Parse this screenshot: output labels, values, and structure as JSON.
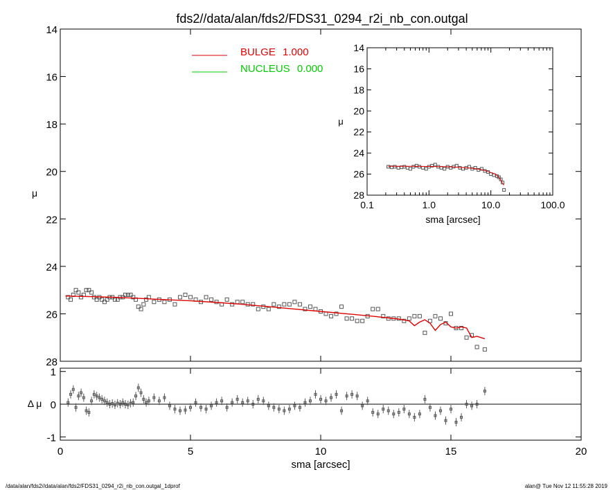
{
  "title": "fds2//data/alan/fds2/FDS31_0294_r2i_nb_con.outgal",
  "footer_left": "/data/alan/fds2//data/alan/fds2/FDS31_0294_r2i_nb_con.outgal_1dprof",
  "footer_right": "alan@  Tue Nov 12 11:55:28 2019",
  "colors": {
    "bulge": "#e00000",
    "nucleus": "#00cc00",
    "data": "#555555"
  },
  "chart_data": [
    {
      "id": "main-profile",
      "type": "scatter",
      "xlabel": "",
      "ylabel": "μ",
      "xlim": [
        0,
        20
      ],
      "ylim": [
        28,
        14
      ],
      "y_inverted": true,
      "xticks": [
        0,
        5,
        10,
        15,
        20
      ],
      "yticks": [
        14,
        16,
        18,
        20,
        22,
        24,
        26,
        28
      ],
      "ytick_labels": [
        "14",
        "16",
        "18",
        "20",
        "22",
        "24",
        "26",
        "28"
      ],
      "legend": [
        {
          "label": "BULGE",
          "value": "1.000",
          "color": "#e00000"
        },
        {
          "label": "NUCLEUS",
          "value": "0.000",
          "color": "#00cc00"
        }
      ],
      "legend_position": "top-center",
      "observed": {
        "x": [
          0.3,
          0.4,
          0.5,
          0.6,
          0.7,
          0.8,
          0.9,
          1.0,
          1.1,
          1.2,
          1.3,
          1.4,
          1.5,
          1.6,
          1.7,
          1.8,
          1.9,
          2.0,
          2.1,
          2.2,
          2.3,
          2.4,
          2.5,
          2.6,
          2.7,
          2.8,
          2.9,
          3.0,
          3.1,
          3.2,
          3.3,
          3.4,
          3.6,
          3.8,
          4.0,
          4.2,
          4.4,
          4.6,
          4.8,
          5.0,
          5.2,
          5.4,
          5.6,
          5.8,
          6.0,
          6.2,
          6.4,
          6.6,
          6.8,
          7.0,
          7.2,
          7.4,
          7.6,
          7.8,
          8.0,
          8.2,
          8.4,
          8.6,
          8.8,
          9.0,
          9.2,
          9.4,
          9.6,
          9.8,
          10.0,
          10.2,
          10.4,
          10.6,
          10.8,
          11.0,
          11.2,
          11.4,
          11.6,
          11.8,
          12.0,
          12.2,
          12.4,
          12.6,
          12.8,
          13.0,
          13.2,
          13.4,
          13.6,
          13.8,
          14.0,
          14.2,
          14.4,
          14.6,
          14.8,
          15.0,
          15.2,
          15.4,
          15.6,
          15.8,
          16.0,
          16.3
        ],
        "y": [
          25.3,
          25.4,
          25.2,
          25.0,
          25.1,
          25.3,
          25.2,
          25.0,
          25.0,
          25.1,
          25.3,
          25.4,
          25.3,
          25.4,
          25.5,
          25.4,
          25.3,
          25.3,
          25.4,
          25.4,
          25.3,
          25.3,
          25.2,
          25.2,
          25.2,
          25.3,
          25.4,
          25.7,
          25.8,
          25.6,
          25.4,
          25.3,
          25.5,
          25.4,
          25.5,
          25.4,
          25.6,
          25.3,
          25.2,
          25.3,
          25.4,
          25.5,
          25.3,
          25.4,
          25.5,
          25.6,
          25.4,
          25.6,
          25.5,
          25.5,
          25.6,
          25.6,
          25.8,
          25.7,
          25.8,
          25.6,
          25.7,
          25.6,
          25.6,
          25.5,
          25.6,
          25.8,
          25.7,
          25.8,
          25.9,
          26.0,
          26.1,
          26.0,
          25.7,
          26.2,
          26.2,
          26.3,
          26.3,
          26.1,
          25.8,
          25.8,
          26.1,
          26.2,
          26.2,
          26.2,
          26.3,
          26.2,
          26.1,
          26.1,
          26.8,
          26.3,
          26.1,
          26.2,
          26.4,
          26.0,
          26.6,
          26.6,
          27.0,
          26.9,
          27.4,
          27.5
        ]
      },
      "model_bulge": {
        "x": [
          0.2,
          1.0,
          2.0,
          3.0,
          4.0,
          5.0,
          6.0,
          7.0,
          8.0,
          9.0,
          10.0,
          11.0,
          12.0,
          13.0,
          13.4,
          13.6,
          13.8,
          14.0,
          14.2,
          14.4,
          14.6,
          14.8,
          15.0,
          15.2,
          15.4,
          15.6,
          15.8,
          16.0,
          16.3
        ],
        "y": [
          25.25,
          25.27,
          25.3,
          25.35,
          25.4,
          25.45,
          25.52,
          25.6,
          25.7,
          25.8,
          25.9,
          26.0,
          26.1,
          26.22,
          26.3,
          26.5,
          26.35,
          26.25,
          26.4,
          26.7,
          26.45,
          26.35,
          26.55,
          26.6,
          26.55,
          26.6,
          27.0,
          26.95,
          27.05
        ]
      }
    },
    {
      "id": "residuals",
      "type": "scatter",
      "xlabel": "sma [arcsec]",
      "ylabel": "Δ μ",
      "xlim": [
        0,
        20
      ],
      "ylim": [
        -1.1,
        1.1
      ],
      "xticks": [
        0,
        5,
        10,
        15,
        20
      ],
      "xtick_labels": [
        "0",
        "5",
        "10",
        "15",
        "20"
      ],
      "yticks": [
        -1,
        0,
        1
      ],
      "ytick_labels": [
        "-1",
        "0",
        "1"
      ],
      "zero_line": true,
      "x": [
        0.3,
        0.4,
        0.5,
        0.6,
        0.7,
        0.8,
        0.9,
        1.0,
        1.1,
        1.2,
        1.3,
        1.4,
        1.5,
        1.6,
        1.7,
        1.8,
        1.9,
        2.0,
        2.1,
        2.2,
        2.3,
        2.4,
        2.5,
        2.6,
        2.7,
        2.8,
        2.9,
        3.0,
        3.1,
        3.2,
        3.3,
        3.4,
        3.6,
        3.8,
        4.0,
        4.2,
        4.4,
        4.6,
        4.8,
        5.0,
        5.2,
        5.4,
        5.6,
        5.8,
        6.0,
        6.2,
        6.4,
        6.6,
        6.8,
        7.0,
        7.2,
        7.4,
        7.6,
        7.8,
        8.0,
        8.2,
        8.4,
        8.6,
        8.8,
        9.0,
        9.2,
        9.4,
        9.6,
        9.8,
        10.0,
        10.2,
        10.4,
        10.6,
        10.8,
        11.0,
        11.2,
        11.4,
        11.6,
        11.8,
        12.0,
        12.2,
        12.4,
        12.6,
        12.8,
        13.0,
        13.2,
        13.4,
        13.6,
        13.8,
        14.0,
        14.2,
        14.4,
        14.6,
        14.8,
        15.0,
        15.2,
        15.4,
        15.6,
        15.8,
        16.0,
        16.3
      ],
      "y": [
        0.05,
        0.3,
        0.45,
        -0.1,
        0.25,
        0.35,
        0.2,
        -0.2,
        -0.25,
        0.1,
        0.3,
        0.25,
        0.2,
        0.15,
        0.1,
        0.05,
        0.0,
        0.02,
        -0.02,
        0.03,
        0.0,
        0.05,
        0.0,
        -0.02,
        0.03,
        0.05,
        0.25,
        0.5,
        0.35,
        0.15,
        0.05,
        0.1,
        0.2,
        0.1,
        0.2,
        -0.05,
        -0.15,
        -0.2,
        -0.18,
        -0.1,
        0.05,
        -0.1,
        -0.15,
        -0.05,
        0.05,
        0.1,
        -0.1,
        0.05,
        0.15,
        0.05,
        0.1,
        0.0,
        0.15,
        0.1,
        -0.05,
        -0.1,
        -0.15,
        -0.2,
        -0.15,
        -0.05,
        -0.1,
        0.05,
        0.1,
        0.3,
        0.15,
        0.1,
        0.2,
        0.3,
        -0.2,
        0.25,
        0.3,
        0.25,
        -0.05,
        0.1,
        -0.25,
        -0.3,
        -0.15,
        -0.2,
        -0.3,
        -0.25,
        -0.15,
        -0.3,
        -0.4,
        -0.3,
        0.15,
        -0.1,
        -0.35,
        -0.2,
        -0.5,
        -0.15,
        -0.55,
        -0.4,
        0.0,
        -0.05,
        0.0,
        0.4
      ]
    },
    {
      "id": "inset-log-profile",
      "type": "scatter",
      "xlabel": "sma [arcsec]",
      "ylabel": "μ",
      "x_scale": "log",
      "xlim": [
        0.1,
        100
      ],
      "ylim": [
        28,
        14
      ],
      "y_inverted": true,
      "xticks": [
        0.1,
        1.0,
        10.0,
        100.0
      ],
      "xtick_labels": [
        "0.1",
        "1.0",
        "10.0",
        "100.0"
      ],
      "yticks": [
        14,
        16,
        18,
        20,
        22,
        24,
        26,
        28
      ],
      "ytick_labels": [
        "14",
        "16",
        "18",
        "20",
        "22",
        "24",
        "26",
        "28"
      ],
      "x": [
        0.22,
        0.25,
        0.28,
        0.32,
        0.36,
        0.4,
        0.45,
        0.5,
        0.56,
        0.63,
        0.7,
        0.8,
        0.9,
        1.0,
        1.12,
        1.26,
        1.41,
        1.58,
        1.78,
        2.0,
        2.24,
        2.5,
        2.8,
        3.16,
        3.55,
        4.0,
        4.47,
        5.0,
        5.6,
        6.3,
        7.1,
        8.0,
        9.0,
        10.0,
        11.2,
        12.6,
        13.5,
        14.5,
        15.5,
        16.3
      ],
      "y": [
        25.3,
        25.35,
        25.3,
        25.4,
        25.35,
        25.3,
        25.4,
        25.5,
        25.3,
        25.2,
        25.3,
        25.4,
        25.5,
        25.3,
        25.2,
        25.1,
        25.3,
        25.4,
        25.5,
        25.3,
        25.4,
        25.3,
        25.2,
        25.4,
        25.5,
        25.4,
        25.3,
        25.5,
        25.4,
        25.6,
        25.5,
        25.7,
        25.8,
        26.0,
        26.1,
        26.2,
        26.3,
        26.5,
        26.8,
        27.5
      ],
      "model_x": [
        0.22,
        0.5,
        1.0,
        2.0,
        4.0,
        6.0,
        8.0,
        10.0,
        12.0,
        14.0,
        15.5,
        16.3
      ],
      "model_y": [
        25.25,
        25.26,
        25.27,
        25.3,
        25.4,
        25.5,
        25.65,
        25.85,
        26.0,
        26.4,
        26.9,
        27.05
      ]
    }
  ]
}
